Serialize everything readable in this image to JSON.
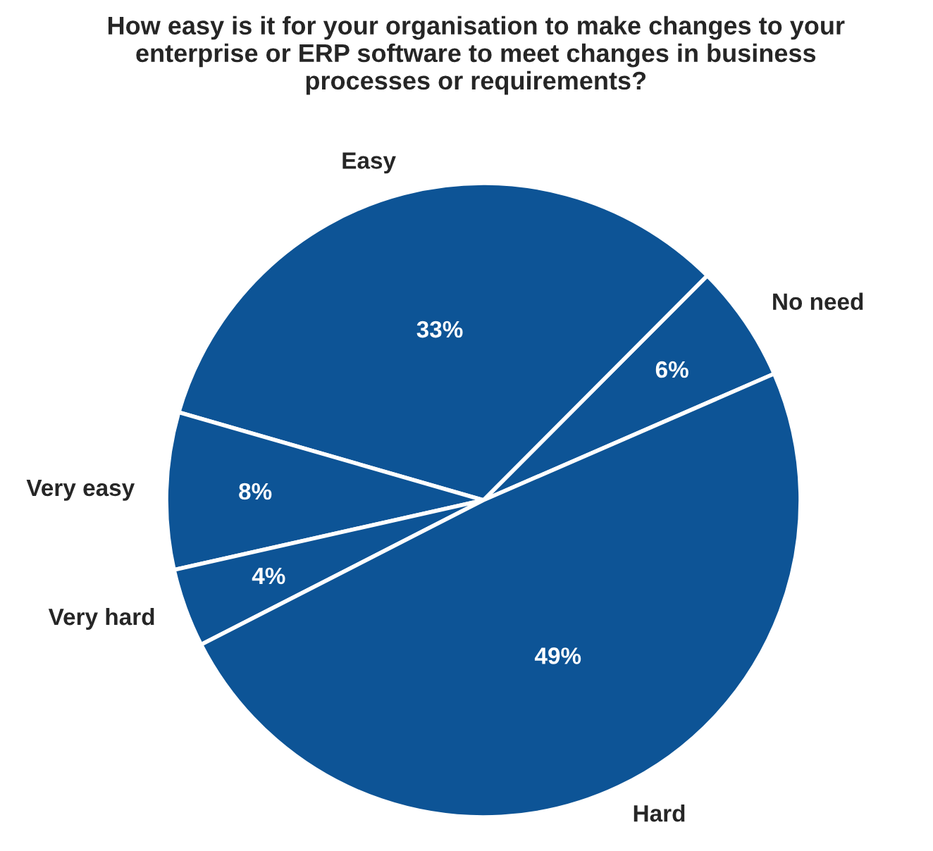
{
  "chart_data": {
    "type": "pie",
    "title": "How easy is it for your organisation to make changes to your\nenterprise or ERP software to meet changes in business\nprocesses or requirements?",
    "categories": [
      "No need",
      "Easy",
      "Very easy",
      "Very hard",
      "Hard"
    ],
    "values": [
      6,
      33,
      8,
      4,
      49
    ],
    "value_labels": [
      "6%",
      "33%",
      "8%",
      "4%",
      "49%"
    ],
    "colors": [
      "#0d5496",
      "#0d5496",
      "#0d5496",
      "#0d5496",
      "#0d5496"
    ],
    "legend": false
  }
}
